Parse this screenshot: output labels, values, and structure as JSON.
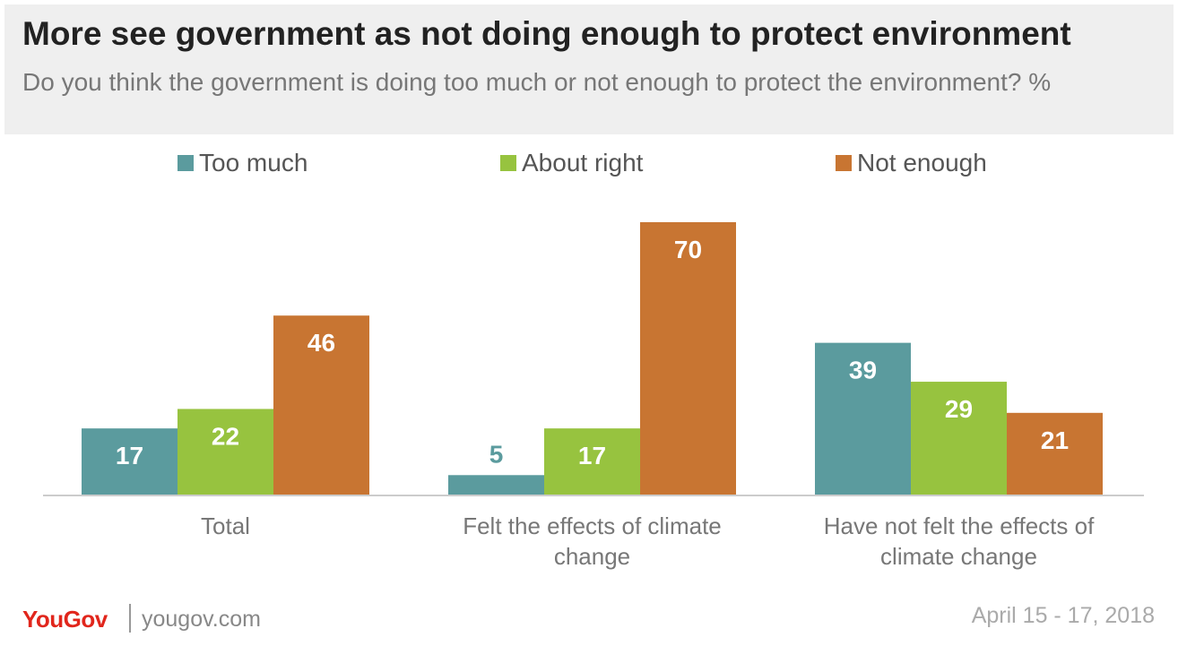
{
  "header": {
    "title": "More see government as not doing enough to protect environment",
    "subtitle": "Do you think the government is doing too much or not enough to protect the environment? %"
  },
  "footer": {
    "brand": "YouGov",
    "url": "yougov.com",
    "date": "April 15 - 17, 2018"
  },
  "chart_data": {
    "type": "bar",
    "categories": [
      [
        "Total"
      ],
      [
        "Felt the effects of climate",
        "change"
      ],
      [
        "Have not felt the effects of",
        "climate change"
      ]
    ],
    "series": [
      {
        "name": "Too much",
        "color": "#5b9b9e",
        "values": [
          17,
          5,
          39
        ]
      },
      {
        "name": "About right",
        "color": "#97c33f",
        "values": [
          22,
          17,
          29
        ]
      },
      {
        "name": "Not enough",
        "color": "#c87532",
        "values": [
          46,
          70,
          21
        ]
      }
    ],
    "legend_position": "top",
    "grid": false,
    "ylim": [
      0,
      70
    ]
  }
}
